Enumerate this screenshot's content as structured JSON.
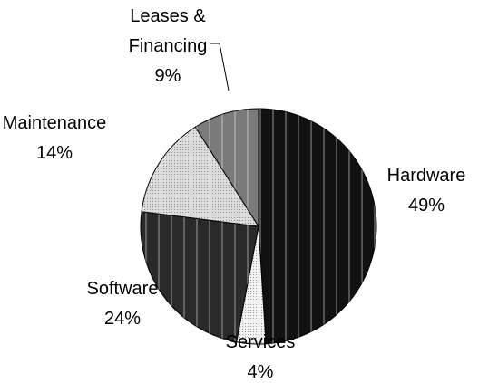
{
  "chart_data": {
    "type": "pie",
    "categories": [
      "Hardware",
      "Services",
      "Software",
      "Maintenance",
      "Leases & Financing"
    ],
    "values": [
      49,
      4,
      24,
      14,
      9
    ],
    "value_labels": [
      "49%",
      "4%",
      "24%",
      "14%",
      "9%"
    ],
    "colors": [
      "#111111",
      "#f2f2f2",
      "#2a2a2a",
      "#dcdcdc",
      "#7a7a7a"
    ]
  }
}
